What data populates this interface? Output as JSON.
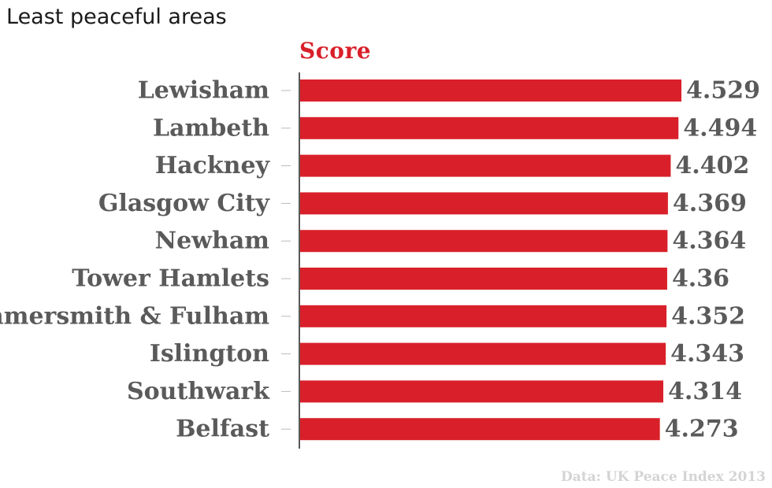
{
  "title": "Least peaceful areas",
  "source_note": "Data: UK Peace Index 2013",
  "colors": {
    "bar": "#d9202a",
    "label": "#5a5a5a",
    "axis": "#222222",
    "tick": "#bbbbbb"
  },
  "chart_data": {
    "type": "bar",
    "orientation": "horizontal",
    "title": "Least peaceful areas",
    "series": [
      {
        "name": "Score",
        "values": [
          4.529,
          4.494,
          4.402,
          4.369,
          4.364,
          4.36,
          4.352,
          4.343,
          4.314,
          4.273
        ]
      }
    ],
    "categories": [
      "Lewisham",
      "Lambeth",
      "Hackney",
      "Glasgow City",
      "Newham",
      "Tower Hamlets",
      "Hammersmith & Fulham",
      "Islington",
      "Southwark",
      "Belfast"
    ],
    "value_labels": [
      "4.529",
      "4.494",
      "4.402",
      "4.369",
      "4.364",
      "4.36",
      "4.352",
      "4.343",
      "4.314",
      "4.273"
    ],
    "xlim": [
      0,
      4.529
    ],
    "grid": false,
    "legend": "none"
  }
}
